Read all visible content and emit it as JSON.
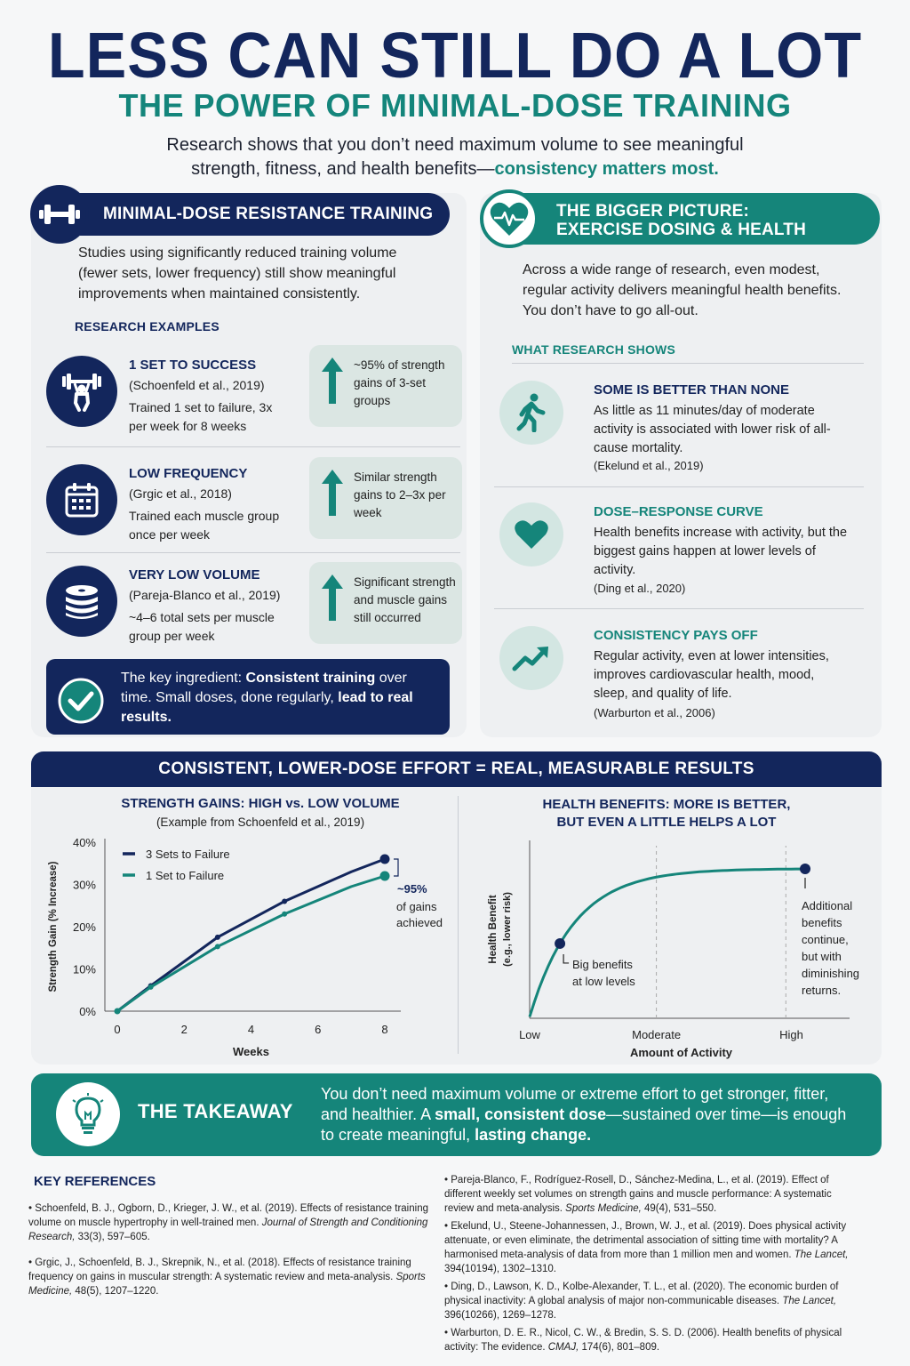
{
  "header": {
    "title": "LESS CAN STILL DO A LOT",
    "subtitle": "THE POWER OF MINIMAL-DOSE TRAINING",
    "intro_line1": "Research shows that you don’t need maximum volume to see meaningful",
    "intro_line2": "strength, fitness, and health benefits—",
    "intro_bold": "consistency matters most."
  },
  "left": {
    "bar_label": "MINIMAL-DOSE RESISTANCE TRAINING",
    "desc": "Studies using significantly reduced training volume (fewer sets, lower frequency) still show meaningful improvements when maintained consistently.",
    "examples_head": "RESEARCH EXAMPLES",
    "studies": [
      {
        "title": "1 SET TO SUCCESS",
        "cite": "(Schoenfeld et al., 2019)",
        "desc": "Trained 1 set to failure, 3x per week for 8 weeks",
        "result_bold": "~95%",
        "result": " of strength gains of 3-set groups",
        "icon": "weightlifter-icon"
      },
      {
        "title": "LOW FREQUENCY",
        "cite": "(Grgic et al., 2018)",
        "desc": "Trained each muscle group once per week",
        "result_bold": "",
        "result": "Similar strength gains to 2–3x per week",
        "icon": "calendar-icon"
      },
      {
        "title": "VERY LOW VOLUME",
        "cite": "(Pareja-Blanco et al., 2019)",
        "desc": "~4–6 total sets per muscle group per week",
        "result_bold": "",
        "result": "Significant strength and muscle gains still occurred",
        "icon": "weight-plates-icon"
      }
    ],
    "key_pre": "The key ingredient: ",
    "key_bold": "Consistent training",
    "key_mid": " over time. Small doses, done regularly, ",
    "key_end": "lead to real results."
  },
  "right": {
    "bar_line1": "THE BIGGER PICTURE:",
    "bar_line2": "EXERCISE DOSING & HEALTH",
    "desc": "Across a wide range of research, even modest, regular activity delivers meaningful health benefits. You don’t have to go all-out.",
    "shows_head": "WHAT RESEARCH SHOWS",
    "items": [
      {
        "title": "SOME IS BETTER THAN NONE",
        "desc": "As little as 11 minutes/day of moderate activity is associated with lower risk of all-cause mortality.",
        "cite": "(Ekelund et al., 2019)",
        "icon": "walking-person-icon"
      },
      {
        "title": "DOSE–RESPONSE CURVE",
        "desc": "Health benefits increase with activity, but the biggest gains happen at lower levels of activity.",
        "cite": "(Ding et al., 2020)",
        "icon": "heart-icon"
      },
      {
        "title": "CONSISTENCY PAYS OFF",
        "desc": "Regular activity, even at lower intensities, improves cardiovascular health, mood, sleep, and quality of life.",
        "cite": "(Warburton et al., 2006)",
        "icon": "trend-up-icon"
      }
    ]
  },
  "results": {
    "bar": "CONSISTENT, LOWER-DOSE EFFORT = REAL, MEASURABLE RESULTS",
    "chart1_title": "STRENGTH GAINS: HIGH vs. LOW VOLUME",
    "chart1_sub": "(Example from Schoenfeld et al., 2019)",
    "chart1_annot_bold": "~95%",
    "chart1_annot_l2": "of gains",
    "chart1_annot_l3": "achieved",
    "chart2_title_l1": "HEALTH BENEFITS: MORE IS BETTER,",
    "chart2_title_l2": "BUT EVEN A LITTLE HELPS A LOT",
    "chart2_annot1_l1": "Big benefits",
    "chart2_annot1_l2": "at low levels",
    "chart2_annot2": [
      "Additional",
      "benefits",
      "continue,",
      "but with",
      "diminishing",
      "returns."
    ]
  },
  "chart_data": [
    {
      "type": "line",
      "title": "STRENGTH GAINS: HIGH vs. LOW VOLUME",
      "xlabel": "Weeks",
      "ylabel": "Strength Gain (% Increase)",
      "xlim": [
        0,
        8
      ],
      "ylim": [
        0,
        40
      ],
      "xticks": [
        "0",
        "2",
        "4",
        "6",
        "8"
      ],
      "yticks": [
        "0%",
        "10%",
        "20%",
        "30%",
        "40%"
      ],
      "legend_position": "top-left",
      "series": [
        {
          "name": "3 Sets to Failure",
          "color": "#13265c",
          "x": [
            0,
            1,
            3,
            5,
            7,
            8
          ],
          "y": [
            0,
            6,
            17.5,
            26,
            33,
            36
          ]
        },
        {
          "name": "1 Set to Failure",
          "color": "#15857a",
          "x": [
            0,
            1,
            3,
            5,
            7,
            8
          ],
          "y": [
            0,
            5.7,
            15.3,
            23,
            29.5,
            32
          ]
        }
      ]
    },
    {
      "type": "line",
      "title": "HEALTH BENEFITS: MORE IS BETTER, BUT EVEN A LITTLE HELPS A LOT",
      "xlabel": "Amount of Activity",
      "ylabel": "Health Benefit",
      "ylabel2": "(e.g., lower risk)",
      "xticks": [
        "Low",
        "Moderate",
        "High"
      ],
      "series": [
        {
          "color": "#15857a",
          "x": [
            0,
            0.05,
            0.12,
            0.25,
            0.4,
            0.6,
            0.8,
            1.0
          ],
          "y": [
            0,
            0.4,
            0.62,
            0.78,
            0.87,
            0.93,
            0.97,
            0.99
          ]
        }
      ]
    }
  ],
  "takeaway": {
    "title": "THE TAKEAWAY",
    "t1": "You don’t need maximum volume or extreme effort to get stronger, fitter, and healthier. A ",
    "t2": "small, consistent dose",
    "t3": "—sustained over time—is enough to create meaningful, ",
    "t4": "lasting change."
  },
  "references": {
    "head": "KEY REFERENCES",
    "items": [
      {
        "pre": "Schoenfeld, B. J., Ogborn, D., Krieger, J. W., et al. (2019). Effects of resistance training volume on muscle hypertrophy in well-trained men. ",
        "journal": "Journal of Strength and Conditioning Research,",
        "post": " 33(3), 597–605."
      },
      {
        "pre": "Grgic, J., Schoenfeld, B. J., Skrepnik, N., et al. (2018). Effects of resistance training frequency on gains in muscular strength: A systematic review and meta-analysis. ",
        "journal": "Sports Medicine,",
        "post": " 48(5), 1207–1220."
      },
      {
        "pre": "Pareja-Blanco, F., Rodríguez-Rosell, D., Sánchez-Medina, L., et al. (2019). Effect of different weekly set volumes on strength gains and muscle performance: A systematic review and meta-analysis. ",
        "journal": "Sports Medicine,",
        "post": " 49(4), 531–550."
      },
      {
        "pre": "Ekelund, U., Steene-Johannessen, J., Brown, W. J., et al. (2019). Does physical activity attenuate, or even eliminate, the detrimental association of sitting time with mortality? A harmonised meta-analysis of data from more than 1 million men and women. ",
        "journal": "The Lancet,",
        "post": " 394(10194), 1302–1310."
      },
      {
        "pre": "Ding, D., Lawson, K. D., Kolbe-Alexander, T. L., et al. (2020). The economic burden of physical inactivity: A global analysis of major non-communicable diseases. ",
        "journal": "The Lancet,",
        "post": " 396(10266), 1269–1278."
      },
      {
        "pre": "Warburton, D. E. R., Nicol, C. W., & Bredin, S. S. D. (2006). Health benefits of physical activity: The evidence. ",
        "journal": "CMAJ,",
        "post": " 174(6), 801–809."
      }
    ]
  }
}
